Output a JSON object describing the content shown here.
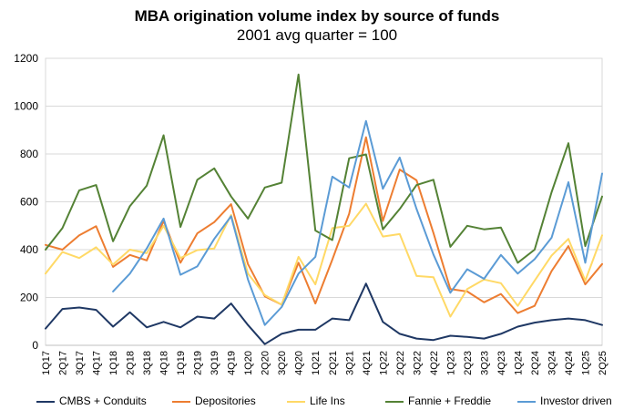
{
  "chart_data": {
    "type": "line",
    "title": "MBA origination volume index by source of funds",
    "subtitle": "2001 avg quarter = 100",
    "xlabel": "",
    "ylabel": "",
    "ylim": [
      0,
      1200
    ],
    "yticks": [
      0,
      200,
      400,
      600,
      800,
      1000,
      1200
    ],
    "grid": true,
    "legend_position": "bottom",
    "x": [
      "1Q17",
      "2Q17",
      "3Q17",
      "4Q17",
      "1Q18",
      "2Q18",
      "3Q18",
      "4Q18",
      "1Q19",
      "2Q19",
      "3Q19",
      "4Q19",
      "1Q20",
      "2Q20",
      "3Q20",
      "4Q20",
      "1Q21",
      "2Q21",
      "3Q21",
      "4Q21",
      "1Q22",
      "2Q22",
      "3Q22",
      "4Q22",
      "1Q23",
      "2Q23",
      "3Q23",
      "4Q23",
      "1Q24",
      "2Q24",
      "3Q24",
      "4Q24",
      "1Q25",
      "2Q25"
    ],
    "series": [
      {
        "name": "CMBS + Conduits",
        "color": "#1f3864",
        "values": [
          70,
          152,
          158,
          148,
          78,
          138,
          75,
          98,
          75,
          120,
          112,
          175,
          85,
          5,
          48,
          65,
          65,
          112,
          105,
          258,
          98,
          48,
          28,
          22,
          40,
          35,
          28,
          48,
          78,
          95,
          105,
          112,
          105,
          85
        ]
      },
      {
        "name": "Depositories",
        "color": "#ed7d31",
        "values": [
          420,
          400,
          460,
          498,
          328,
          378,
          355,
          520,
          345,
          468,
          515,
          590,
          340,
          205,
          170,
          345,
          175,
          358,
          550,
          870,
          520,
          735,
          690,
          470,
          235,
          225,
          180,
          215,
          135,
          165,
          310,
          415,
          255,
          340
        ]
      },
      {
        "name": "Life Ins",
        "color": "#ffd966",
        "values": [
          300,
          390,
          365,
          410,
          338,
          400,
          385,
          500,
          365,
          398,
          405,
          545,
          300,
          210,
          170,
          370,
          255,
          490,
          500,
          592,
          455,
          465,
          290,
          285,
          120,
          235,
          275,
          260,
          165,
          270,
          375,
          445,
          270,
          460
        ]
      },
      {
        "name": "Fannie + Freddie",
        "color": "#548235",
        "values": [
          400,
          490,
          648,
          670,
          435,
          582,
          668,
          878,
          495,
          692,
          740,
          622,
          530,
          660,
          680,
          1132,
          480,
          440,
          782,
          798,
          485,
          570,
          670,
          692,
          412,
          500,
          485,
          492,
          345,
          400,
          640,
          845,
          415,
          622
        ]
      },
      {
        "name": "Investor driven",
        "color": "#5b9bd5",
        "values": [
          null,
          null,
          null,
          null,
          225,
          300,
          405,
          530,
          295,
          330,
          445,
          540,
          275,
          85,
          160,
          300,
          370,
          705,
          660,
          938,
          655,
          785,
          570,
          380,
          220,
          318,
          278,
          378,
          300,
          360,
          450,
          682,
          345,
          718
        ]
      }
    ]
  }
}
